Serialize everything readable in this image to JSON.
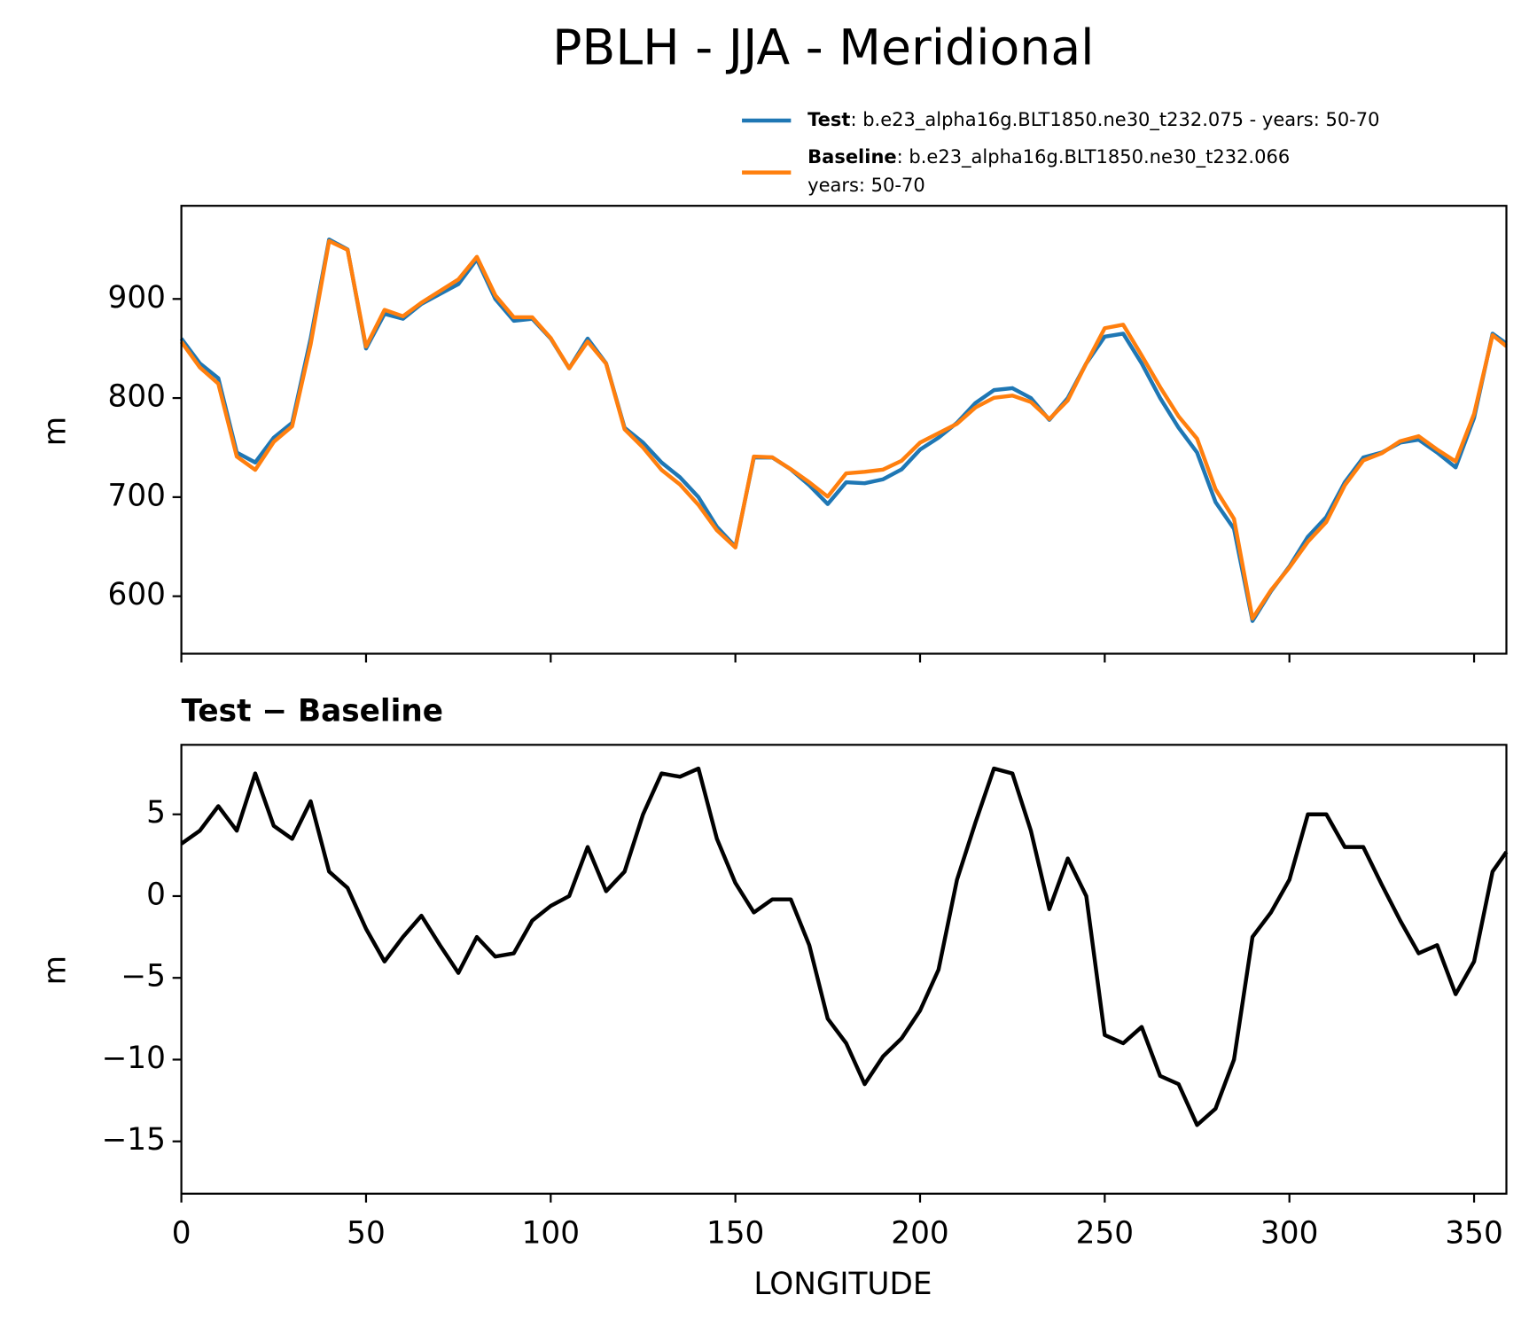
{
  "chart_data": [
    {
      "type": "line",
      "title": "PBLH - JJA - Meridional",
      "y_label": "m",
      "x": [
        0,
        5,
        10,
        15,
        20,
        25,
        30,
        35,
        40,
        45,
        50,
        55,
        60,
        65,
        70,
        75,
        80,
        85,
        90,
        95,
        100,
        105,
        110,
        115,
        120,
        125,
        130,
        135,
        140,
        145,
        150,
        155,
        160,
        165,
        170,
        175,
        180,
        185,
        190,
        195,
        200,
        205,
        210,
        215,
        220,
        225,
        230,
        235,
        240,
        245,
        250,
        255,
        260,
        265,
        270,
        275,
        280,
        285,
        290,
        295,
        300,
        305,
        310,
        315,
        320,
        325,
        330,
        335,
        340,
        345,
        350,
        355,
        358.75
      ],
      "xlim": [
        0,
        358.75
      ],
      "ylim": [
        542,
        994
      ],
      "yticks": [
        600,
        700,
        800,
        900
      ],
      "series": [
        {
          "name": "Test",
          "label": ": b.e23_alpha16g.BLT1850.ne30_t232.075 - years: 50-70",
          "color": "#1f77b4",
          "values": [
            860,
            835,
            820,
            745,
            735,
            760,
            775,
            860,
            960,
            950,
            850,
            885,
            880,
            895,
            905,
            915,
            940,
            900,
            878,
            880,
            860,
            830,
            860,
            835,
            770,
            755,
            735,
            720,
            700,
            670,
            650,
            740,
            740,
            728,
            712,
            693,
            715,
            714,
            718,
            728,
            748,
            760,
            775,
            795,
            808,
            810,
            800,
            778,
            800,
            835,
            862,
            865,
            835,
            800,
            770,
            745,
            695,
            668,
            575,
            605,
            630,
            660,
            680,
            715,
            740,
            745,
            755,
            758,
            745,
            730,
            780,
            865,
            855
          ]
        },
        {
          "name": "Baseline",
          "label": [
            ": b.e23_alpha16g.BLT1850.ne30_t232.066",
            "years: 50-70"
          ],
          "color": "#ff7f0e",
          "values": [
            856.8,
            831,
            814.5,
            741,
            727.5,
            755.7,
            771.5,
            854.2,
            958.5,
            949.5,
            852,
            889,
            882.5,
            896.2,
            908,
            919.7,
            942.5,
            903.7,
            881.5,
            881.5,
            860.6,
            830,
            857,
            834.7,
            768.5,
            750,
            727.5,
            712.7,
            692.2,
            666.5,
            649.2,
            741,
            740.2,
            728.2,
            715,
            700.5,
            724,
            725.5,
            727.8,
            736.7,
            755,
            764.5,
            774,
            790.5,
            800.2,
            802.5,
            796,
            778.8,
            797.7,
            835,
            870.5,
            874,
            843,
            811,
            781.5,
            759,
            708,
            678,
            577.5,
            606,
            629,
            655,
            675,
            712,
            737,
            744.3,
            756.5,
            761.5,
            748,
            736,
            784,
            863.5,
            852.3
          ]
        }
      ]
    },
    {
      "type": "line",
      "title": "Test − Baseline",
      "y_label": "m",
      "x_label": "LONGITUDE",
      "x": [
        0,
        5,
        10,
        15,
        20,
        25,
        30,
        35,
        40,
        45,
        50,
        55,
        60,
        65,
        70,
        75,
        80,
        85,
        90,
        95,
        100,
        105,
        110,
        115,
        120,
        125,
        130,
        135,
        140,
        145,
        150,
        155,
        160,
        165,
        170,
        175,
        180,
        185,
        190,
        195,
        200,
        205,
        210,
        215,
        220,
        225,
        230,
        235,
        240,
        245,
        250,
        255,
        260,
        265,
        270,
        275,
        280,
        285,
        290,
        295,
        300,
        305,
        310,
        315,
        320,
        325,
        330,
        335,
        340,
        345,
        350,
        355,
        358.75
      ],
      "xlim": [
        0,
        358.75
      ],
      "xticks": [
        0,
        50,
        100,
        150,
        200,
        250,
        300,
        350
      ],
      "ylim": [
        -18.2,
        9.25
      ],
      "yticks": [
        {
          "value": -15,
          "label": "−15"
        },
        {
          "value": -10,
          "label": "−10"
        },
        {
          "value": -5,
          "label": "−5"
        },
        0,
        5
      ],
      "series": [
        {
          "color": "#000000",
          "values": [
            3.2,
            4,
            5.5,
            4,
            7.5,
            4.3,
            3.5,
            5.8,
            1.5,
            0.5,
            -2,
            -4,
            -2.5,
            -1.2,
            -3,
            -4.7,
            -2.5,
            -3.7,
            -3.5,
            -1.5,
            -0.6,
            0,
            3,
            0.3,
            1.5,
            5,
            7.5,
            7.3,
            7.8,
            3.5,
            0.8,
            -1,
            -0.2,
            -0.2,
            -3,
            -7.5,
            -9,
            -11.5,
            -9.8,
            -8.7,
            -7,
            -4.5,
            1,
            4.5,
            7.8,
            7.5,
            4,
            -0.8,
            2.3,
            0,
            -8.5,
            -9,
            -8,
            -11,
            -11.5,
            -14,
            -13,
            -10,
            -2.5,
            -1,
            1,
            5,
            5,
            3,
            3,
            0.7,
            -1.5,
            -3.5,
            -3,
            -6,
            -4,
            1.5,
            2.7
          ]
        }
      ]
    }
  ]
}
